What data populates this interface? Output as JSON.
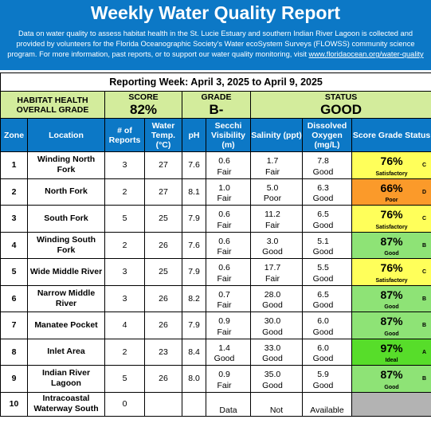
{
  "header": {
    "title": "Weekly Water Quality Report",
    "description": "Data on water quality to assess habitat health in the St. Lucie Estuary and southern Indian River Lagoon is collected and provided by volunteers for the Florida Oceanographic Society's Water ecoSystem Surveys (FLOWSS) community science program.  For more information, past reports, or to support our water quality monitoring, visit",
    "link": "www.floridaocean.org/water-quality"
  },
  "reporting_week": "Reporting Week: April 3, 2025 to April 9, 2025",
  "summary": {
    "habitat_label_1": "HABITAT HEALTH",
    "habitat_label_2": "OVERALL GRADE",
    "score_label": "SCORE",
    "score_value": "82%",
    "grade_label": "GRADE",
    "grade_value": "B-",
    "status_label": "STATUS",
    "status_value": "GOOD"
  },
  "columns": {
    "zone": "Zone",
    "location": "Location",
    "reports": "# of Reports",
    "temp": "Water Temp. (°C)",
    "ph": "pH",
    "secchi": "Secchi Visibility (m)",
    "salinity": "Salinity (ppt)",
    "oxygen": "Dissolved Oxygen (mg/L)",
    "score_grade_status": "Score   Grade Status"
  },
  "colors": {
    "header_blue": "#0c78c6",
    "summary_green": "#d3ec9c",
    "satisfactory": "#ffff5a",
    "poor": "#fb9a2a",
    "good": "#8ee376",
    "ideal": "#57dd2a",
    "no_data": "#b3b3b3"
  },
  "rows": [
    {
      "zone": "1",
      "location": "Winding North Fork",
      "reports": "3",
      "temp": "27",
      "ph": "7.6",
      "secchi": "0.6",
      "secchi_q": "Fair",
      "sal": "1.7",
      "sal_q": "Fair",
      "do": "7.8",
      "do_q": "Good",
      "score": "76%",
      "grade": "C",
      "status": "Satisfactory",
      "color": "#ffff5a"
    },
    {
      "zone": "2",
      "location": "North Fork",
      "reports": "2",
      "temp": "27",
      "ph": "8.1",
      "secchi": "1.0",
      "secchi_q": "Fair",
      "sal": "5.0",
      "sal_q": "Poor",
      "do": "6.3",
      "do_q": "Good",
      "score": "66%",
      "grade": "D",
      "status": "Poor",
      "color": "#fb9a2a"
    },
    {
      "zone": "3",
      "location": "South Fork",
      "reports": "5",
      "temp": "25",
      "ph": "7.9",
      "secchi": "0.6",
      "secchi_q": "Fair",
      "sal": "11.2",
      "sal_q": "Fair",
      "do": "6.5",
      "do_q": "Good",
      "score": "76%",
      "grade": "C",
      "status": "Satisfactory",
      "color": "#ffff5a"
    },
    {
      "zone": "4",
      "location": "Winding South Fork",
      "reports": "2",
      "temp": "26",
      "ph": "7.6",
      "secchi": "0.6",
      "secchi_q": "Fair",
      "sal": "3.0",
      "sal_q": "Good",
      "do": "5.1",
      "do_q": "Good",
      "score": "87%",
      "grade": "B",
      "status": "Good",
      "color": "#8ee376"
    },
    {
      "zone": "5",
      "location": "Wide Middle River",
      "reports": "3",
      "temp": "25",
      "ph": "7.9",
      "secchi": "0.6",
      "secchi_q": "Fair",
      "sal": "17.7",
      "sal_q": "Fair",
      "do": "5.5",
      "do_q": "Good",
      "score": "76%",
      "grade": "C",
      "status": "Satisfactory",
      "color": "#ffff5a"
    },
    {
      "zone": "6",
      "location": "Narrow Middle River",
      "reports": "3",
      "temp": "26",
      "ph": "8.2",
      "secchi": "0.7",
      "secchi_q": "Fair",
      "sal": "28.0",
      "sal_q": "Good",
      "do": "6.5",
      "do_q": "Good",
      "score": "87%",
      "grade": "B",
      "status": "Good",
      "color": "#8ee376"
    },
    {
      "zone": "7",
      "location": "Manatee Pocket",
      "reports": "4",
      "temp": "26",
      "ph": "7.9",
      "secchi": "0.9",
      "secchi_q": "Fair",
      "sal": "30.0",
      "sal_q": "Good",
      "do": "6.0",
      "do_q": "Good",
      "score": "87%",
      "grade": "B",
      "status": "Good",
      "color": "#8ee376"
    },
    {
      "zone": "8",
      "location": "Inlet Area",
      "reports": "2",
      "temp": "23",
      "ph": "8.4",
      "secchi": "1.4",
      "secchi_q": "Good",
      "sal": "33.0",
      "sal_q": "Good",
      "do": "6.0",
      "do_q": "Good",
      "score": "97%",
      "grade": "A",
      "status": "Ideal",
      "color": "#57dd2a"
    },
    {
      "zone": "9",
      "location": "Indian River Lagoon",
      "reports": "5",
      "temp": "26",
      "ph": "8.0",
      "secchi": "0.9",
      "secchi_q": "Fair",
      "sal": "35.0",
      "sal_q": "Good",
      "do": "5.9",
      "do_q": "Good",
      "score": "87%",
      "grade": "B",
      "status": "Good",
      "color": "#8ee376"
    }
  ],
  "last_row": {
    "zone": "10",
    "location": "Intracoastal Waterway South",
    "reports": "0",
    "nd_1": "Data",
    "nd_2": "Not",
    "nd_3": "Available"
  }
}
